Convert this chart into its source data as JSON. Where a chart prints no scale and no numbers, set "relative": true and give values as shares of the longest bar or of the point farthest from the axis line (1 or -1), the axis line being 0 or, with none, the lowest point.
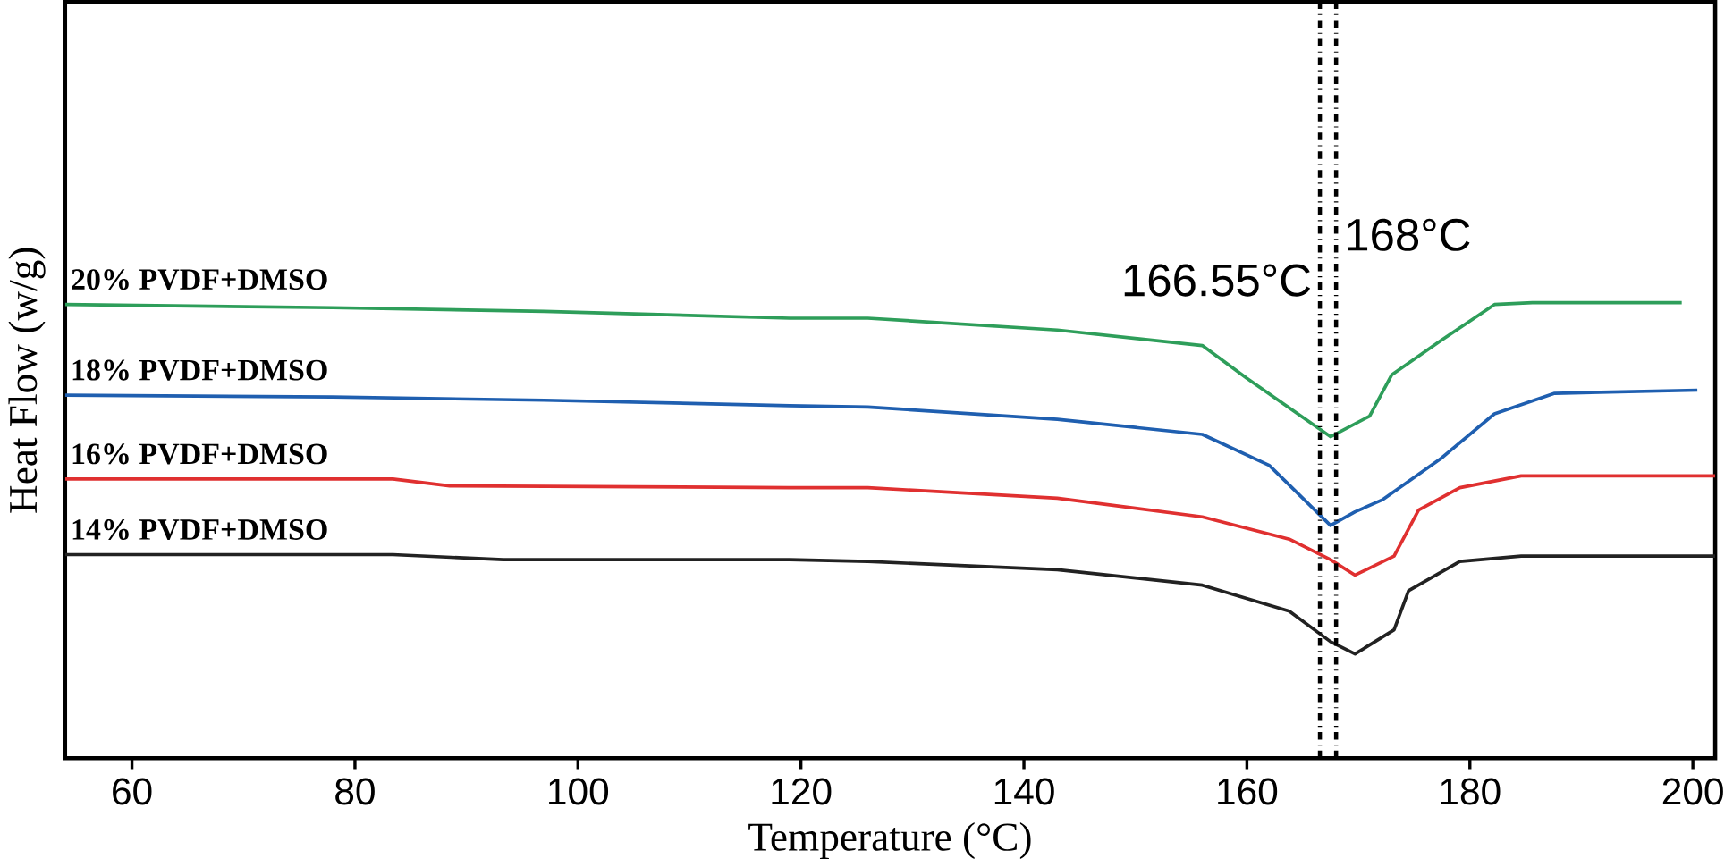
{
  "chart_data": {
    "type": "line",
    "xlabel": "Temperature (°C)",
    "ylabel": "Heat Flow (w/g)",
    "relative": true,
    "xlim": [
      54,
      202
    ],
    "xticks": [
      60,
      80,
      100,
      120,
      140,
      160,
      180,
      200
    ],
    "grid": false,
    "legend": false,
    "marker": "none",
    "line_style": "solid",
    "series": [
      {
        "name": "20% PVDF+DMSO",
        "color": "#2e9e5a",
        "x": [
          54,
          78,
          97,
          119,
          126,
          143,
          156,
          160,
          167.5,
          171,
          173,
          177.4,
          182.2,
          185.6,
          199
        ],
        "values": [
          0.996,
          0.989,
          0.981,
          0.966,
          0.966,
          0.94,
          0.906,
          0.834,
          0.706,
          0.751,
          0.842,
          0.917,
          0.996,
          1.0,
          1.0
        ]
      },
      {
        "name": "18% PVDF+DMSO",
        "color": "#1f5fb0",
        "x": [
          54,
          78,
          97,
          119,
          126,
          143,
          156,
          162,
          167.5,
          169.7,
          172.2,
          177.4,
          182.2,
          187.6,
          200.4
        ],
        "values": [
          0.797,
          0.793,
          0.786,
          0.774,
          0.771,
          0.744,
          0.711,
          0.643,
          0.511,
          0.541,
          0.568,
          0.658,
          0.756,
          0.801,
          0.808
        ]
      },
      {
        "name": "16% PVDF+DMSO",
        "color": "#e03030",
        "x": [
          54,
          83.4,
          88.5,
          119,
          126,
          143,
          156,
          163.8,
          167.5,
          169.7,
          173.2,
          175.4,
          179.1,
          184.6,
          202
        ],
        "values": [
          0.613,
          0.613,
          0.598,
          0.594,
          0.594,
          0.571,
          0.53,
          0.481,
          0.436,
          0.402,
          0.444,
          0.545,
          0.594,
          0.62,
          0.62
        ]
      },
      {
        "name": "14% PVDF+DMSO",
        "color": "#222222",
        "x": [
          54,
          83.4,
          93.3,
          119,
          126,
          143,
          156,
          163.8,
          167.5,
          169.7,
          173.2,
          174.5,
          179.1,
          184.6,
          202
        ],
        "values": [
          0.447,
          0.447,
          0.436,
          0.436,
          0.432,
          0.414,
          0.38,
          0.323,
          0.256,
          0.229,
          0.282,
          0.368,
          0.432,
          0.444,
          0.444
        ]
      }
    ],
    "ref_lines": [
      {
        "axis": "x",
        "value": 166.55,
        "label": "166.55°C",
        "color": "#000000",
        "line_style": "dashdot"
      },
      {
        "axis": "x",
        "value": 168,
        "label": "168°C",
        "color": "#000000",
        "line_style": "dashdot"
      }
    ]
  }
}
